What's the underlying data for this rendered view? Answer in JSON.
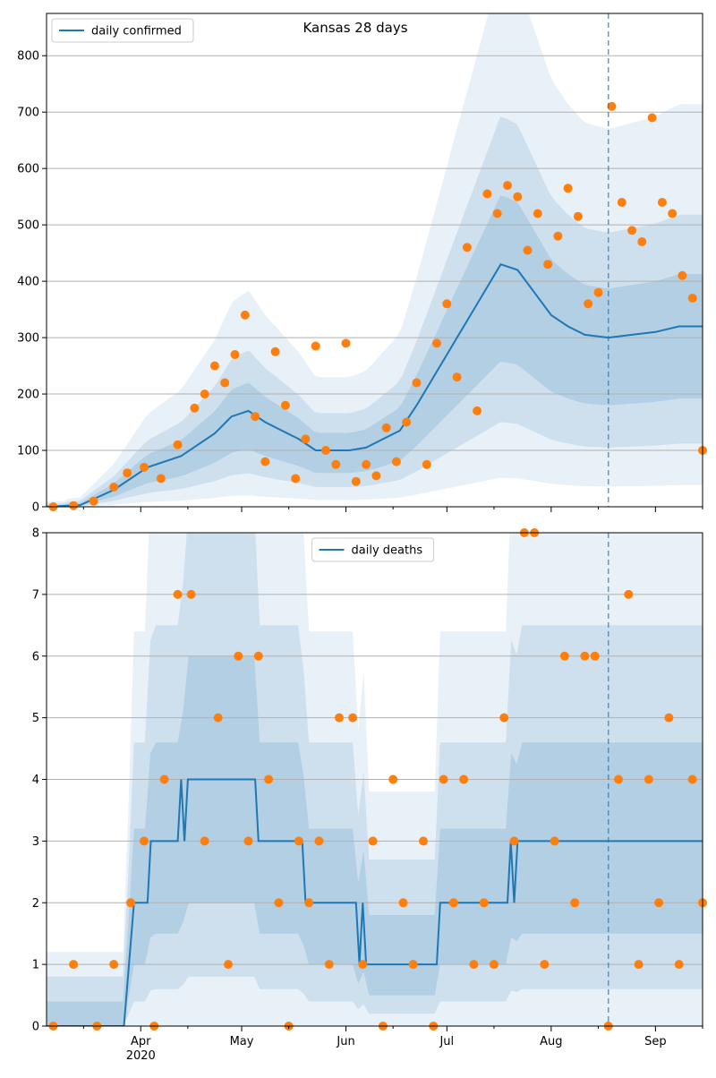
{
  "colors": {
    "line": "#1f77b4",
    "dots": "#ff7f0e",
    "band": "#1f77b4",
    "grid": "#b0b0b0"
  },
  "chart_data": [
    {
      "type": "line",
      "title": "Kansas 28 days",
      "legend": {
        "label": "daily confirmed",
        "placement": "top-left"
      },
      "xlabel": "",
      "ylabel": "",
      "x_ticks": [
        "Apr",
        "May",
        "Jun",
        "Jul",
        "Aug",
        "Sep"
      ],
      "x_year_label": "2020",
      "yticks": [
        0,
        100,
        200,
        300,
        400,
        500,
        600,
        700,
        800
      ],
      "ylim": [
        0,
        875
      ],
      "xlim": [
        "2020-03-04",
        "2020-09-15"
      ],
      "forecast_start": "2020-08-18",
      "grid": "horizontal",
      "series": [
        {
          "name": "daily confirmed",
          "kind": "smoothed line",
          "x": [
            "2020-03-04",
            "2020-03-14",
            "2020-03-24",
            "2020-04-03",
            "2020-04-13",
            "2020-04-23",
            "2020-04-28",
            "2020-05-03",
            "2020-05-08",
            "2020-05-13",
            "2020-05-18",
            "2020-05-23",
            "2020-05-28",
            "2020-06-02",
            "2020-06-07",
            "2020-06-12",
            "2020-06-17",
            "2020-06-22",
            "2020-06-27",
            "2020-07-02",
            "2020-07-07",
            "2020-07-12",
            "2020-07-17",
            "2020-07-22",
            "2020-07-27",
            "2020-08-01",
            "2020-08-06",
            "2020-08-11",
            "2020-08-18",
            "2020-08-25",
            "2020-09-01",
            "2020-09-08",
            "2020-09-15"
          ],
          "values": [
            0,
            3,
            30,
            70,
            90,
            130,
            160,
            170,
            150,
            135,
            120,
            100,
            100,
            100,
            105,
            120,
            135,
            180,
            230,
            280,
            330,
            380,
            430,
            420,
            380,
            340,
            320,
            305,
            300,
            305,
            310,
            320,
            320
          ]
        },
        {
          "name": "observed",
          "kind": "points",
          "x": [
            "2020-03-06",
            "2020-03-12",
            "2020-03-18",
            "2020-03-24",
            "2020-03-28",
            "2020-04-02",
            "2020-04-07",
            "2020-04-12",
            "2020-04-17",
            "2020-04-20",
            "2020-04-23",
            "2020-04-26",
            "2020-04-29",
            "2020-05-02",
            "2020-05-05",
            "2020-05-08",
            "2020-05-11",
            "2020-05-14",
            "2020-05-17",
            "2020-05-20",
            "2020-05-23",
            "2020-05-26",
            "2020-05-29",
            "2020-06-01",
            "2020-06-04",
            "2020-06-07",
            "2020-06-10",
            "2020-06-13",
            "2020-06-16",
            "2020-06-19",
            "2020-06-22",
            "2020-06-25",
            "2020-06-28",
            "2020-07-01",
            "2020-07-04",
            "2020-07-07",
            "2020-07-10",
            "2020-07-13",
            "2020-07-16",
            "2020-07-19",
            "2020-07-22",
            "2020-07-25",
            "2020-07-28",
            "2020-07-31",
            "2020-08-03",
            "2020-08-06",
            "2020-08-09",
            "2020-08-12",
            "2020-08-15",
            "2020-08-19",
            "2020-08-22",
            "2020-08-25",
            "2020-08-28",
            "2020-08-31",
            "2020-09-03",
            "2020-09-06",
            "2020-09-09",
            "2020-09-12",
            "2020-09-15"
          ],
          "values": [
            0,
            2,
            10,
            35,
            60,
            70,
            50,
            110,
            175,
            200,
            250,
            220,
            270,
            340,
            160,
            80,
            275,
            180,
            50,
            120,
            285,
            100,
            75,
            290,
            45,
            75,
            55,
            140,
            80,
            150,
            220,
            75,
            290,
            360,
            230,
            460,
            170,
            555,
            520,
            570,
            550,
            455,
            520,
            430,
            480,
            565,
            515,
            360,
            380,
            710,
            540,
            490,
            470,
            690,
            540,
            520,
            410,
            370,
            100
          ]
        }
      ]
    },
    {
      "type": "line",
      "title": "",
      "legend": {
        "label": "daily deaths",
        "placement": "top-center"
      },
      "xlabel": "",
      "ylabel": "",
      "x_ticks": [
        "Apr",
        "May",
        "Jun",
        "Jul",
        "Aug",
        "Sep"
      ],
      "x_year_label": "2020",
      "yticks": [
        0,
        1,
        2,
        3,
        4,
        5,
        6,
        7,
        8
      ],
      "ylim": [
        0,
        8
      ],
      "xlim": [
        "2020-03-04",
        "2020-09-15"
      ],
      "forecast_start": "2020-08-18",
      "grid": "horizontal",
      "series": [
        {
          "name": "daily deaths",
          "kind": "step line",
          "x": [
            "2020-03-04",
            "2020-03-27",
            "2020-03-30",
            "2020-04-03",
            "2020-04-04",
            "2020-04-12",
            "2020-04-13",
            "2020-04-14",
            "2020-04-15",
            "2020-05-05",
            "2020-05-06",
            "2020-05-19",
            "2020-05-20",
            "2020-06-04",
            "2020-06-05",
            "2020-06-06",
            "2020-06-07",
            "2020-06-08",
            "2020-06-28",
            "2020-06-29",
            "2020-07-19",
            "2020-07-20",
            "2020-07-21",
            "2020-07-22",
            "2020-09-15"
          ],
          "values": [
            0,
            0,
            2,
            2,
            3,
            3,
            4,
            3,
            4,
            4,
            3,
            3,
            2,
            2,
            1,
            2,
            1,
            1,
            1,
            2,
            2,
            3,
            2,
            3,
            3
          ]
        },
        {
          "name": "observed",
          "kind": "points",
          "x": [
            "2020-03-06",
            "2020-03-12",
            "2020-03-19",
            "2020-03-24",
            "2020-03-29",
            "2020-04-02",
            "2020-04-05",
            "2020-04-08",
            "2020-04-12",
            "2020-04-16",
            "2020-04-20",
            "2020-04-24",
            "2020-04-27",
            "2020-04-30",
            "2020-05-03",
            "2020-05-06",
            "2020-05-09",
            "2020-05-12",
            "2020-05-15",
            "2020-05-18",
            "2020-05-21",
            "2020-05-24",
            "2020-05-27",
            "2020-05-30",
            "2020-06-03",
            "2020-06-06",
            "2020-06-09",
            "2020-06-12",
            "2020-06-15",
            "2020-06-18",
            "2020-06-21",
            "2020-06-24",
            "2020-06-27",
            "2020-06-30",
            "2020-07-03",
            "2020-07-06",
            "2020-07-09",
            "2020-07-12",
            "2020-07-15",
            "2020-07-18",
            "2020-07-21",
            "2020-07-24",
            "2020-07-27",
            "2020-07-30",
            "2020-08-02",
            "2020-08-05",
            "2020-08-08",
            "2020-08-11",
            "2020-08-14",
            "2020-08-18",
            "2020-08-21",
            "2020-08-24",
            "2020-08-27",
            "2020-08-30",
            "2020-09-02",
            "2020-09-05",
            "2020-09-08",
            "2020-09-12",
            "2020-09-15"
          ],
          "values": [
            0,
            1,
            0,
            1,
            2,
            3,
            0,
            4,
            7,
            7,
            3,
            5,
            1,
            6,
            3,
            6,
            4,
            2,
            0,
            3,
            2,
            3,
            1,
            5,
            5,
            1,
            3,
            0,
            4,
            2,
            1,
            3,
            0,
            4,
            2,
            4,
            1,
            2,
            1,
            5,
            3,
            8,
            8,
            1,
            3,
            6,
            2,
            6,
            6,
            0,
            4,
            7,
            1,
            4,
            2,
            5,
            1,
            4,
            2
          ]
        }
      ]
    }
  ]
}
